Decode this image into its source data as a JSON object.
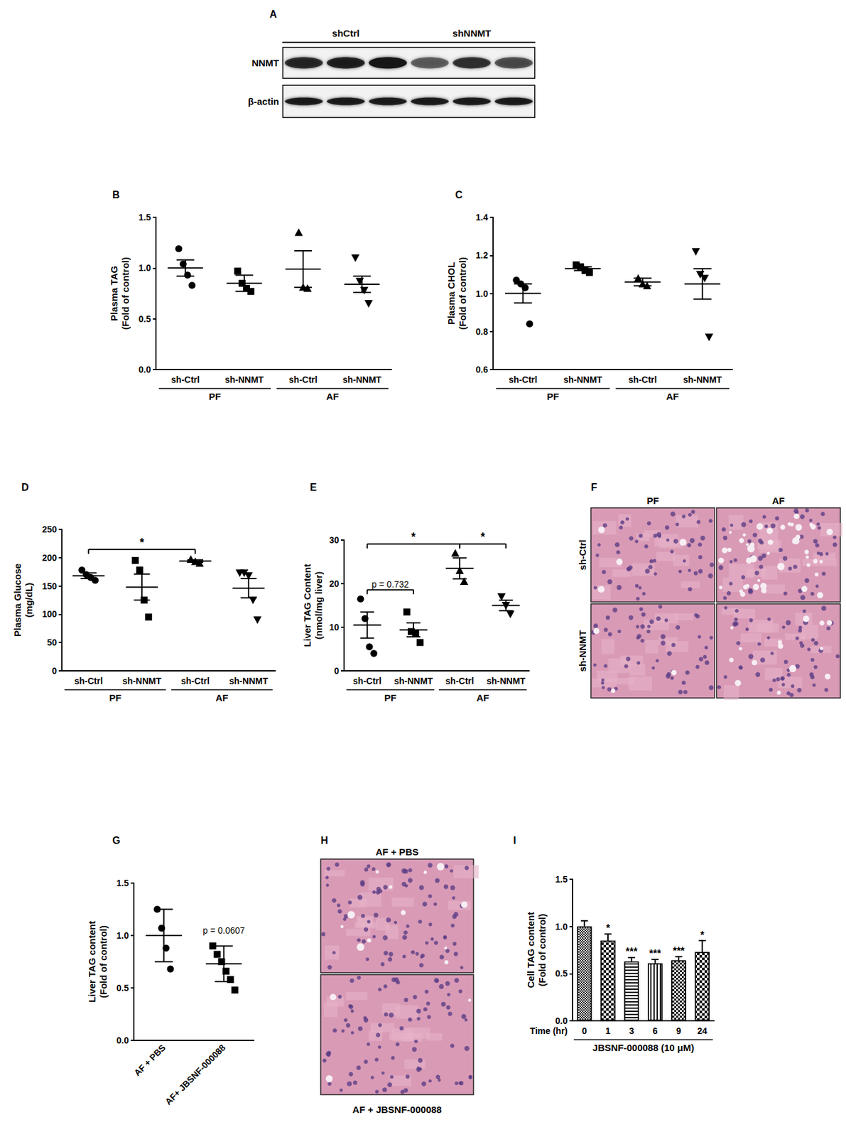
{
  "chart_data": [
    {
      "title": "B",
      "type": "scatter",
      "y_label": "Plasma TAG\n(Fold of control)",
      "categories": [
        "sh-Ctrl",
        "sh-NNMT",
        "sh-Ctrl",
        "sh-NNMT"
      ],
      "group_labels": [
        "PF",
        "PF",
        "AF",
        "AF"
      ],
      "markers": [
        "circle",
        "square",
        "triangle",
        "triangle-down"
      ],
      "color": "#000000",
      "points": [
        [
          1.19,
          1.04,
          0.93,
          0.83
        ],
        [
          0.97,
          0.85,
          0.8,
          0.77
        ],
        [
          1.35,
          0.81,
          0.8
        ],
        [
          1.1,
          0.87,
          0.78,
          0.65
        ]
      ],
      "mean": [
        1.0,
        0.85,
        0.99,
        0.84
      ],
      "errors": [
        0.08,
        0.08,
        0.18,
        0.08
      ],
      "ylim": [
        0,
        1.5
      ],
      "yticks": [
        {
          "value": 0,
          "label": "0.0"
        },
        {
          "value": 0.5,
          "label": "0.5"
        },
        {
          "value": 1,
          "label": "1.0"
        },
        {
          "value": 1.5,
          "label": "1.5"
        }
      ],
      "grid": false
    },
    {
      "title": "C",
      "type": "scatter",
      "y_label": "Plasma CHOL\n(Fold of control)",
      "categories": [
        "sh-Ctrl",
        "sh-NNMT",
        "sh-Ctrl",
        "sh-NNMT"
      ],
      "group_labels": [
        "PF",
        "PF",
        "AF",
        "AF"
      ],
      "markers": [
        "circle",
        "square",
        "triangle",
        "triangle-down"
      ],
      "color": "#000000",
      "points": [
        [
          1.07,
          1.05,
          1.03,
          0.84
        ],
        [
          1.15,
          1.14,
          1.12,
          1.11
        ],
        [
          1.08,
          1.05,
          1.04
        ],
        [
          1.22,
          1.1,
          1.08,
          0.77
        ]
      ],
      "mean": [
        1.0,
        1.13,
        1.06,
        1.05
      ],
      "errors": [
        0.05,
        0.01,
        0.02,
        0.08
      ],
      "ylim": [
        0.6,
        1.4
      ],
      "yticks": [
        0.6,
        0.8,
        {
          "value": 1,
          "label": "1.0"
        },
        1.2,
        1.4
      ],
      "grid": false
    },
    {
      "title": "D",
      "type": "scatter",
      "y_label": "Plasma Glucose\n(mg/dL)",
      "categories": [
        "sh-Ctrl",
        "sh-NNMT",
        "sh-Ctrl",
        "sh-NNMT"
      ],
      "group_labels": [
        "PF",
        "PF",
        "AF",
        "AF"
      ],
      "markers": [
        "circle",
        "square",
        "triangle",
        "triangle-down"
      ],
      "color": "#000000",
      "points": [
        [
          178,
          170,
          165,
          160
        ],
        [
          195,
          178,
          125,
          95
        ],
        [
          197,
          193,
          190
        ],
        [
          173,
          173,
          168,
          125,
          90
        ]
      ],
      "mean": [
        168,
        148,
        194,
        146
      ],
      "errors": [
        5,
        23,
        2,
        17
      ],
      "annotations": [
        {
          "from": 0,
          "to": 2,
          "text": "*"
        }
      ],
      "ylim": [
        0,
        250
      ],
      "yticks": [
        0,
        50,
        100,
        150,
        200,
        250
      ],
      "grid": false
    },
    {
      "title": "E",
      "type": "scatter",
      "y_label": "Liver TAG Content\n(nmol/mg liver)",
      "categories": [
        "sh-Ctrl",
        "sh-NNMT",
        "sh-Ctrl",
        "sh-NNMT"
      ],
      "group_labels": [
        "PF",
        "PF",
        "AF",
        "AF"
      ],
      "markers": [
        "circle",
        "square",
        "triangle",
        "triangle-down"
      ],
      "color": "#000000",
      "points": [
        [
          16.5,
          12,
          5.5,
          4
        ],
        [
          13.5,
          9,
          8.5,
          6.5
        ],
        [
          27,
          23,
          20.5
        ],
        [
          17,
          15,
          13
        ]
      ],
      "mean": [
        10.5,
        9.4,
        23.5,
        15
      ],
      "errors": [
        3,
        1.6,
        2.4,
        1.2
      ],
      "annotations": [
        {
          "from": 0,
          "to": 2,
          "text": "*"
        },
        {
          "from": 2,
          "to": 3,
          "text": "*"
        },
        {
          "from": 0,
          "to": 1,
          "text": "p = 0.732"
        }
      ],
      "ylim": [
        0,
        30
      ],
      "yticks": [
        0,
        10,
        20,
        30
      ],
      "grid": false
    },
    {
      "title": "G",
      "type": "scatter",
      "y_label": "Liver TAG content\n(Fold of control)",
      "categories": [
        "AF + PBS",
        "AF+ JBSNF-000088"
      ],
      "markers": [
        "circle",
        "square"
      ],
      "color": "#000000",
      "points": [
        [
          1.25,
          1.07,
          0.88,
          0.68
        ],
        [
          0.9,
          0.82,
          0.75,
          0.66,
          0.58,
          0.48
        ]
      ],
      "mean": [
        1.0,
        0.73
      ],
      "errors": [
        0.25,
        0.17
      ],
      "annotations": [
        {
          "category": 1,
          "text": "p = 0.0607"
        }
      ],
      "ylim": [
        0,
        1.5
      ],
      "yticks": [
        {
          "value": 0,
          "label": "0.0"
        },
        {
          "value": 0.5,
          "label": "0.5"
        },
        {
          "value": 1,
          "label": "1.0"
        },
        {
          "value": 1.5,
          "label": "1.5"
        }
      ],
      "grid": false
    },
    {
      "title": "I",
      "type": "bar",
      "y_label": "Cell TAG content\n(Fold of control)",
      "x_label": "Time (hr)",
      "categories": [
        "0",
        "1",
        "3",
        "6",
        "9",
        "24"
      ],
      "group_labels": [
        "JBSNF-000088 (10 μM)",
        "JBSNF-000088 (10 μM)",
        "JBSNF-000088 (10 μM)",
        "JBSNF-000088 (10 μM)",
        "JBSNF-000088 (10 μM)",
        "JBSNF-000088 (10 μM)"
      ],
      "values": [
        1.0,
        0.85,
        0.63,
        0.61,
        0.64,
        0.73
      ],
      "errors": [
        0.06,
        0.07,
        0.04,
        0.04,
        0.04,
        0.12
      ],
      "annotations": [
        null,
        "*",
        "***",
        "***",
        "***",
        "*"
      ],
      "color": "#ffffff",
      "ylim": [
        0,
        1.5
      ],
      "yticks": [
        {
          "value": 0,
          "label": "0.0"
        },
        {
          "value": 0.5,
          "label": "0.5"
        },
        {
          "value": 1,
          "label": "1.0"
        },
        {
          "value": 1.5,
          "label": "1.5"
        }
      ],
      "grid": false
    }
  ],
  "images": {
    "A": {
      "title": "A",
      "column_labels": [
        "shCtrl",
        "shNNMT"
      ],
      "row_labels": [
        "NNMT",
        "β-actin"
      ]
    },
    "F": {
      "title": "F",
      "column_labels": [
        "PF",
        "AF"
      ],
      "row_labels": [
        "sh-Ctrl",
        "sh-NNMT"
      ]
    },
    "H": {
      "title": "H",
      "top_label": "AF + PBS",
      "bottom_label": "AF + JBSNF-000088"
    }
  }
}
